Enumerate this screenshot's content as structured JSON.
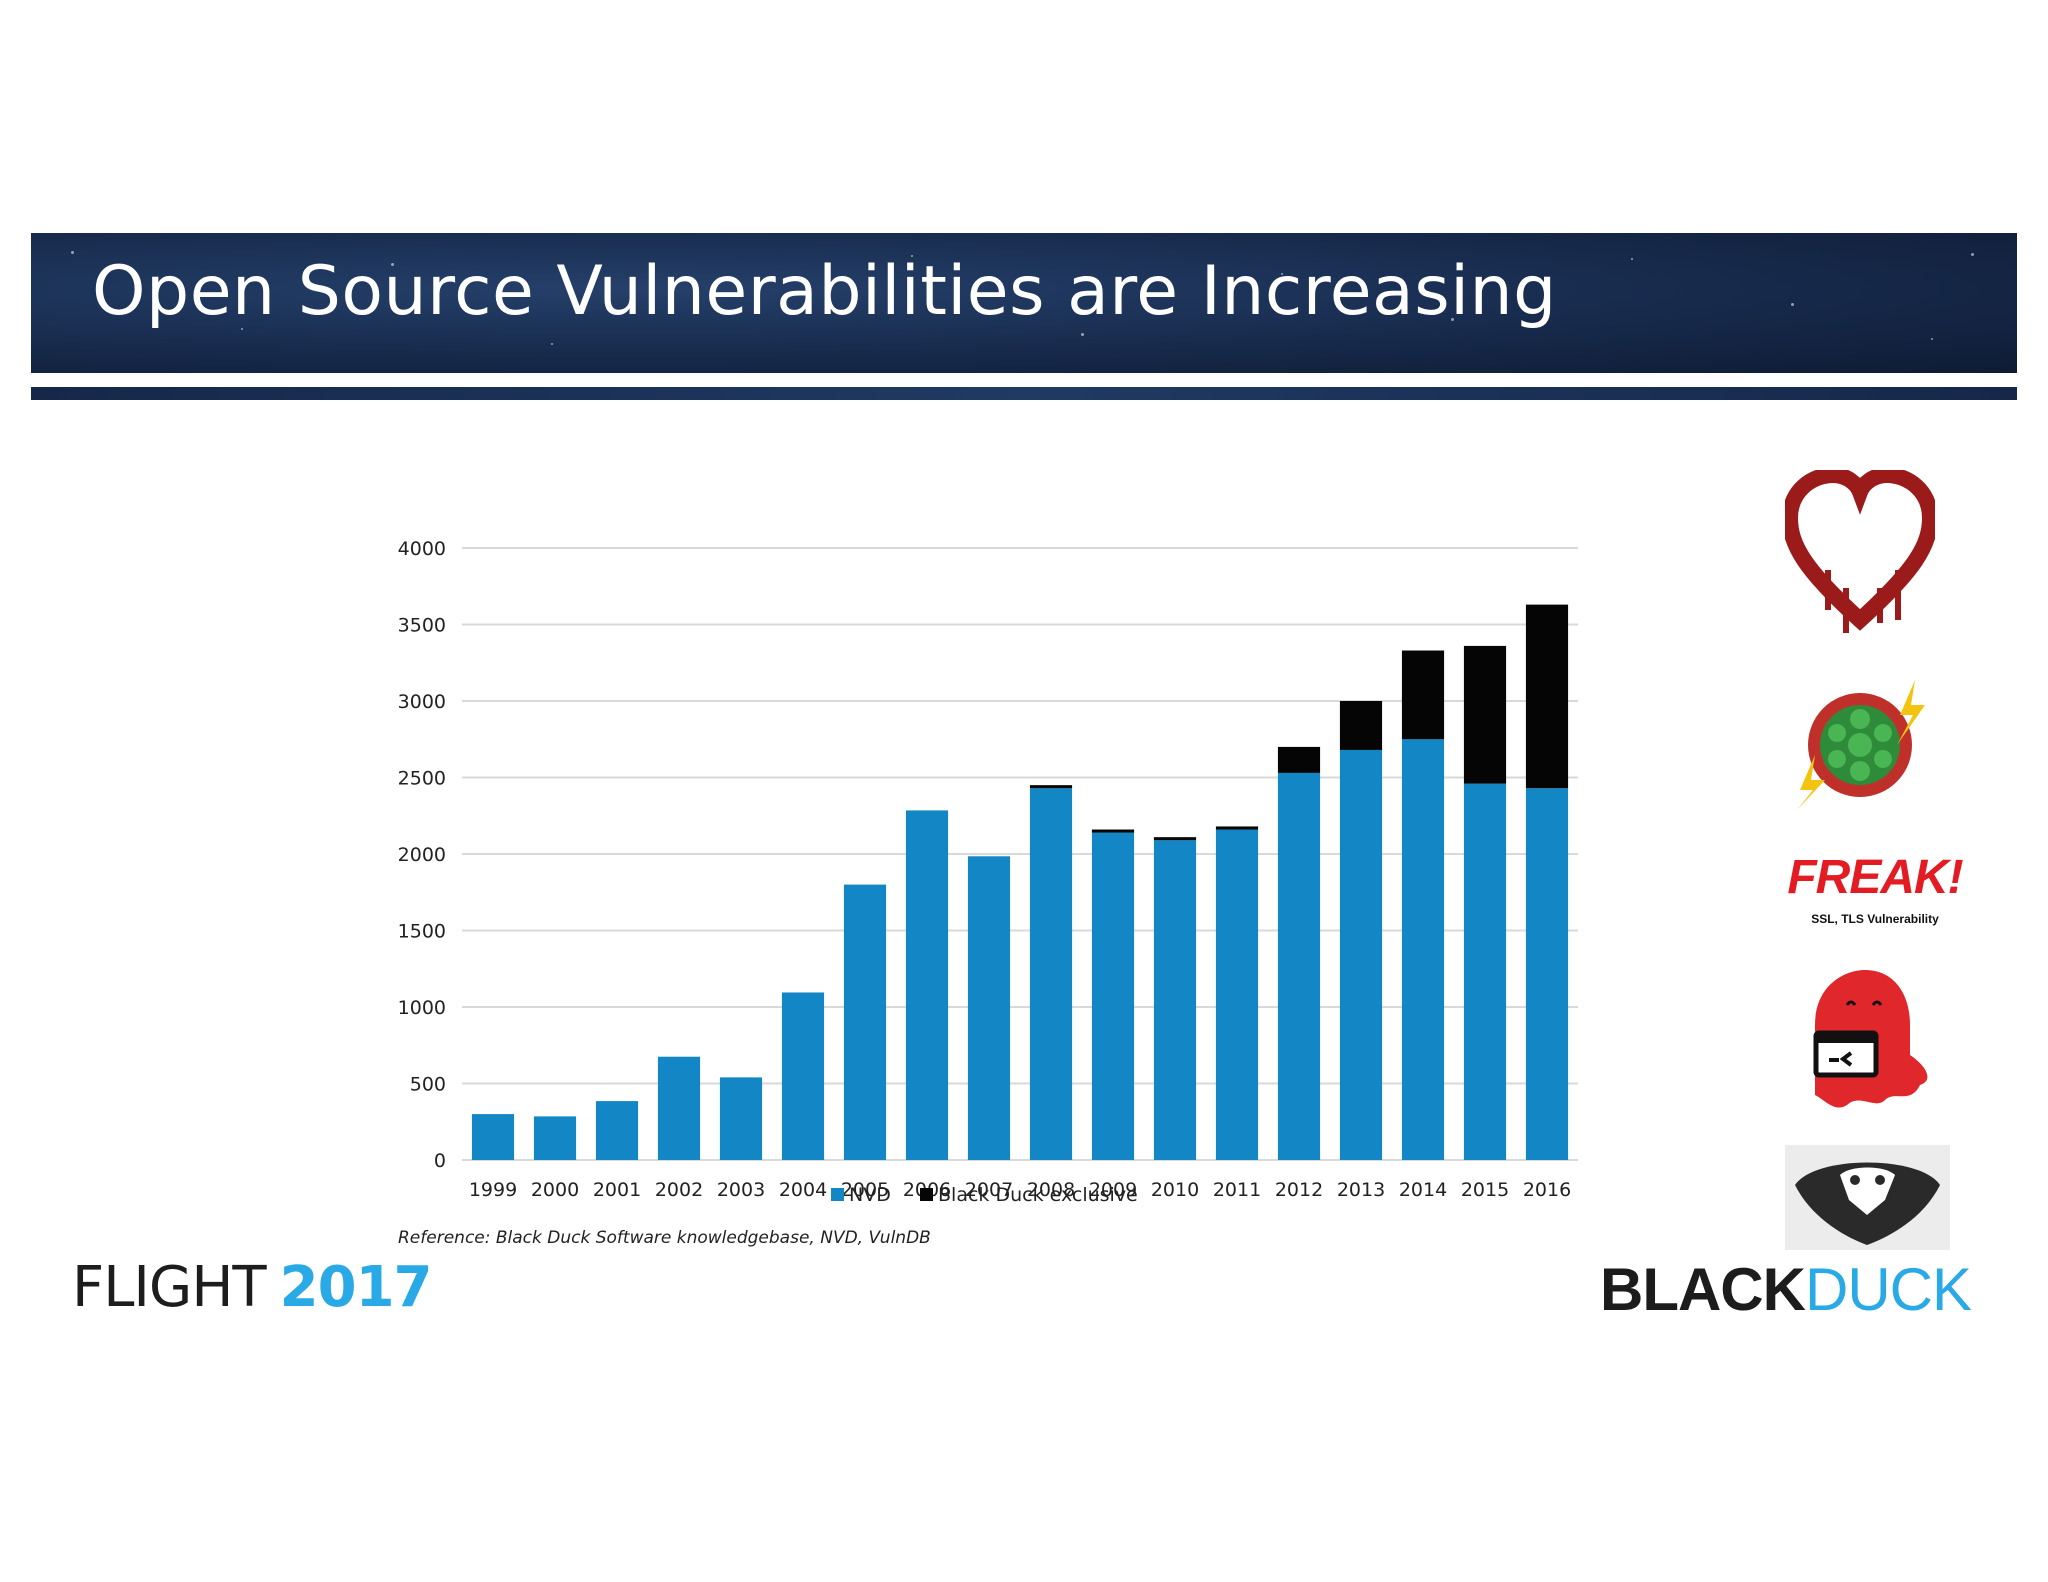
{
  "slide": {
    "title": "Open Source Vulnerabilities are Increasing",
    "reference": "Reference: Black Duck Software knowledgebase, NVD, VulnDB"
  },
  "logos": {
    "flight_text": "FLIGHT",
    "flight_year": "2017",
    "blackduck_black": "BLACK",
    "blackduck_blue": "DUCK"
  },
  "vuln_icons": {
    "freak_title": "FREAK!",
    "freak_subtitle": "SSL, TLS Vulnerability"
  },
  "colors": {
    "nvd": "#1386c6",
    "exclusive": "#050505",
    "grid": "#d9d9d9",
    "accent_blue": "#29a9e6",
    "alert_red": "#e31c23"
  },
  "chart_data": {
    "type": "bar",
    "stacked": true,
    "categories": [
      "1999",
      "2000",
      "2001",
      "2002",
      "2003",
      "2004",
      "2005",
      "2006",
      "2007",
      "2008",
      "2009",
      "2010",
      "2011",
      "2012",
      "2013",
      "2014",
      "2015",
      "2016"
    ],
    "series": [
      {
        "name": "NVD",
        "values": [
          300,
          285,
          385,
          675,
          540,
          1095,
          1800,
          2285,
          1985,
          2430,
          2140,
          2090,
          2160,
          2530,
          2680,
          2750,
          2460,
          2430
        ]
      },
      {
        "name": "Black Duck exclusive",
        "values": [
          0,
          0,
          0,
          0,
          0,
          0,
          0,
          0,
          0,
          20,
          20,
          20,
          20,
          170,
          320,
          580,
          900,
          1200
        ]
      }
    ],
    "yticks": [
      0,
      500,
      1000,
      1500,
      2000,
      2500,
      3000,
      3500,
      4000
    ],
    "ylim": [
      0,
      4000
    ],
    "title": "",
    "xlabel": "",
    "ylabel": "",
    "legend_position": "bottom"
  }
}
